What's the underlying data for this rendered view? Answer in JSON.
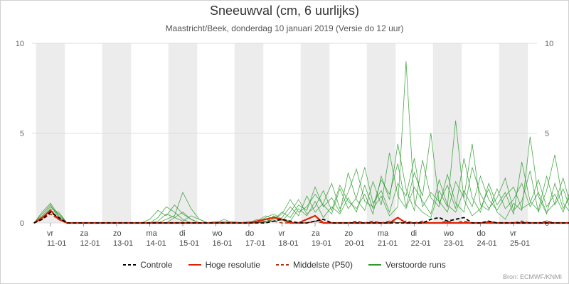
{
  "title": "Sneeuwval (cm, 6 uurlijks)",
  "subtitle": "Maastricht/Beek, donderdag 10 januari 2019 (Versie do 12 uur)",
  "credit": "Bron: ECMWF/KNMI",
  "colors": {
    "control": "#000000",
    "high_res": "#dd2200",
    "median": "#b03010",
    "ensemble": "#2a9a2a",
    "band": "#ececec",
    "grid": "#dddddd"
  },
  "legend": [
    {
      "key": "control",
      "label": "Controle",
      "style": "dashed",
      "color": "#000000"
    },
    {
      "key": "high_res",
      "label": "Hoge resolutie",
      "style": "solid",
      "color": "#dd2200"
    },
    {
      "key": "median",
      "label": "Middelste (P50)",
      "style": "dashed",
      "color": "#b03010"
    },
    {
      "key": "ensemble",
      "label": "Verstoorde runs",
      "style": "solid",
      "color": "#2a9a2a"
    }
  ],
  "chart_data": {
    "type": "line",
    "title": "Sneeuwval (cm, 6 uurlijks)",
    "subtitle": "Maastricht/Beek, donderdag 10 januari 2019 (Versie do 12 uur)",
    "ylim": [
      0,
      10
    ],
    "yticks": [
      0,
      5,
      10
    ],
    "x_step_hours": 6,
    "x_start": "2019-01-10 18:00",
    "days": [
      {
        "weekday": "vr",
        "date": "11-01"
      },
      {
        "weekday": "za",
        "date": "12-01"
      },
      {
        "weekday": "zo",
        "date": "13-01"
      },
      {
        "weekday": "ma",
        "date": "14-01"
      },
      {
        "weekday": "di",
        "date": "15-01"
      },
      {
        "weekday": "wo",
        "date": "16-01"
      },
      {
        "weekday": "do",
        "date": "17-01"
      },
      {
        "weekday": "vr",
        "date": "18-01"
      },
      {
        "weekday": "za",
        "date": "19-01"
      },
      {
        "weekday": "zo",
        "date": "20-01"
      },
      {
        "weekday": "ma",
        "date": "21-01"
      },
      {
        "weekday": "di",
        "date": "22-01"
      },
      {
        "weekday": "wo",
        "date": "23-01"
      },
      {
        "weekday": "do",
        "date": "24-01"
      },
      {
        "weekday": "vr",
        "date": "25-01"
      }
    ],
    "series": [
      {
        "name": "Controle",
        "values": [
          0,
          0.2,
          0.6,
          0.3,
          0,
          0,
          0,
          0,
          0,
          0,
          0,
          0,
          0,
          0,
          0,
          0,
          0,
          0,
          0,
          0,
          0,
          0,
          0,
          0,
          0,
          0,
          0,
          0,
          0,
          0.1,
          0.2,
          0.1,
          0,
          0,
          0.1,
          0.2,
          0,
          0,
          0,
          0,
          0,
          0,
          0,
          0,
          0,
          0,
          0,
          0,
          0.2,
          0.3,
          0.1,
          0.2,
          0.3,
          0,
          0,
          0.1,
          0,
          0,
          0,
          0,
          0,
          0,
          0,
          0,
          0,
          0,
          0,
          0,
          0.5,
          0.3,
          0.1,
          0.4,
          0.7,
          0.3,
          0.1,
          0
        ]
      },
      {
        "name": "Hoge resolutie",
        "values": [
          0,
          0.3,
          0.7,
          0.2,
          0,
          0,
          0,
          0,
          0,
          0,
          0,
          0,
          0,
          0,
          0,
          0,
          0,
          0,
          0,
          0,
          0,
          0,
          0,
          0,
          0,
          0,
          0,
          0.1,
          0.2,
          0.3,
          0.2,
          0,
          0,
          0.2,
          0.4,
          0,
          0,
          0,
          0,
          0,
          0,
          0,
          0,
          0,
          0.3,
          0,
          0,
          0,
          0,
          0,
          0,
          0,
          0,
          0,
          0,
          0,
          0,
          0,
          0,
          0,
          0,
          0,
          0,
          0,
          0,
          0,
          0,
          0,
          0,
          0,
          0,
          0,
          0,
          0,
          0,
          0
        ]
      },
      {
        "name": "Middelste (P50)",
        "values": [
          0,
          0.2,
          0.5,
          0.2,
          0,
          0,
          0,
          0,
          0,
          0,
          0,
          0,
          0,
          0,
          0,
          0,
          0,
          0,
          0,
          0,
          0,
          0,
          0,
          0,
          0,
          0,
          0,
          0,
          0.1,
          0.1,
          0,
          0,
          0,
          0,
          0.1,
          0,
          0,
          0,
          0,
          0.1,
          0,
          0.1,
          0,
          0.1,
          0,
          0.1,
          0,
          0.1,
          0,
          0,
          0.1,
          0,
          0.1,
          0,
          0,
          0.1,
          0,
          0,
          0,
          0.1,
          0,
          0,
          0.1,
          0,
          0,
          0,
          0.1,
          0,
          0,
          0,
          0.1,
          0,
          0,
          0,
          0,
          0
        ]
      },
      {
        "name": "Verstoorde runs",
        "members": [
          [
            0,
            0.4,
            0.9,
            0.5,
            0,
            0,
            0,
            0,
            0,
            0,
            0,
            0,
            0,
            0,
            0,
            0,
            0,
            0.3,
            0.6,
            0.2,
            0,
            0,
            0,
            0.1,
            0,
            0,
            0,
            0,
            0.3,
            0.5,
            0.2,
            0.1,
            0.8,
            0.4,
            1.2,
            0.3,
            0.9,
            0.5,
            1.4,
            0.6,
            2.1,
            0.8,
            1.5,
            0.4,
            0.9,
            9.0,
            1.1,
            0.6,
            0.3,
            1.8,
            0.9,
            5.7,
            1.3,
            0.4,
            0.8,
            1.9,
            0.6,
            0.2,
            1.1,
            0.7,
            4.8,
            1.5,
            0.5,
            2.2,
            0.8,
            1.6,
            4.2,
            0.9,
            1.4,
            0.6,
            1.2,
            0.4,
            2.3,
            0.7,
            3.1,
            0.9
          ],
          [
            0,
            0.6,
            1.1,
            0.4,
            0,
            0,
            0,
            0,
            0,
            0,
            0,
            0,
            0,
            0,
            0,
            0,
            0.2,
            0.4,
            1.7,
            0.8,
            0.2,
            0,
            0,
            0,
            0,
            0,
            0,
            0.2,
            0,
            0.4,
            0.1,
            0.6,
            1.3,
            0.5,
            0.9,
            1.8,
            0.7,
            2.1,
            1.2,
            0.8,
            1.6,
            0.5,
            2.6,
            1.3,
            4.4,
            1.9,
            0.7,
            3.5,
            1.4,
            0.9,
            2.7,
            1.1,
            0.6,
            3.1,
            1.6,
            0.8,
            1.4,
            2.5,
            0.7,
            1.2,
            2.9,
            0.6,
            1.8,
            3.8,
            1.1,
            0.5,
            2.3,
            1.2,
            0.8,
            1.9,
            0.6,
            1.4,
            0.9,
            2.0,
            1.1,
            1.8
          ],
          [
            0,
            0.3,
            0.8,
            0.6,
            0,
            0,
            0,
            0,
            0,
            0,
            0,
            0,
            0,
            0,
            0,
            0.1,
            0.5,
            0.3,
            0.1,
            0.4,
            0.2,
            0,
            0,
            0.2,
            0,
            0,
            0.1,
            0,
            0.2,
            0.1,
            0.3,
            0.9,
            0.4,
            1.5,
            0.6,
            1.1,
            2.2,
            0.8,
            1.7,
            3.0,
            1.2,
            0.9,
            2.4,
            1.6,
            3.3,
            0.9,
            2.8,
            1.5,
            5.0,
            1.1,
            2.1,
            0.8,
            3.6,
            1.4,
            0.6,
            2.2,
            1.0,
            1.7,
            0.5,
            3.4,
            1.2,
            0.7,
            2.6,
            1.0,
            1.9,
            0.6,
            1.3,
            2.1,
            0.9,
            0.5,
            1.7,
            0.8,
            1.2,
            0.4,
            0.9,
            0.5
          ],
          [
            0,
            0.5,
            1.0,
            0.3,
            0,
            0,
            0,
            0,
            0,
            0,
            0,
            0,
            0,
            0,
            0.2,
            0.7,
            0.4,
            1.0,
            0.5,
            0.2,
            0,
            0,
            0,
            0,
            0.1,
            0,
            0,
            0,
            0.1,
            0.2,
            0.6,
            0.3,
            1.0,
            0.7,
            2.0,
            0.9,
            1.4,
            0.6,
            2.8,
            1.3,
            0.7,
            2.3,
            1.0,
            3.9,
            1.5,
            0.8,
            2.0,
            1.2,
            0.5,
            2.4,
            1.0,
            0.6,
            1.8,
            0.9,
            2.6,
            1.3,
            0.7,
            1.5,
            2.0,
            0.8,
            1.1,
            2.4,
            0.9,
            1.6,
            0.6,
            2.0,
            1.0,
            0.7,
            1.5,
            1.0,
            0.4,
            2.2,
            0.8,
            1.4,
            0.6,
            1.2
          ],
          [
            0,
            0.2,
            0.7,
            0.5,
            0,
            0,
            0,
            0,
            0,
            0,
            0,
            0,
            0,
            0,
            0,
            0.3,
            0.9,
            0.6,
            0.2,
            0,
            0,
            0,
            0.1,
            0,
            0,
            0,
            0,
            0.1,
            0.4,
            0.2,
            0.5,
            1.3,
            0.6,
            0.9,
            1.6,
            1.0,
            0.5,
            1.9,
            0.8,
            1.4,
            3.1,
            1.1,
            1.8,
            0.6,
            2.2,
            1.5,
            3.6,
            0.9,
            1.7,
            1.2,
            0.6,
            2.3,
            1.4,
            4.4,
            1.0,
            0.7,
            1.9,
            0.8,
            1.3,
            2.2,
            0.9,
            1.7,
            0.6,
            1.1,
            2.5,
            0.8,
            1.4,
            0.9,
            3.0,
            1.1,
            0.6,
            1.3,
            0.5,
            1.6,
            0.8,
            1.0
          ]
        ]
      }
    ]
  }
}
